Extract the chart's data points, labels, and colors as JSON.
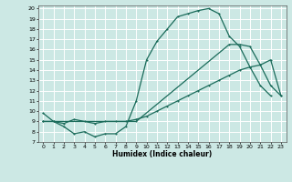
{
  "xlabel": "Humidex (Indice chaleur)",
  "bg_color": "#cce8e4",
  "grid_color": "#ffffff",
  "line_color": "#1a6b5a",
  "xlim": [
    -0.5,
    23.5
  ],
  "ylim": [
    7,
    20.3
  ],
  "xticks": [
    0,
    1,
    2,
    3,
    4,
    5,
    6,
    7,
    8,
    9,
    10,
    11,
    12,
    13,
    14,
    15,
    16,
    17,
    18,
    19,
    20,
    21,
    22,
    23
  ],
  "yticks": [
    7,
    8,
    9,
    10,
    11,
    12,
    13,
    14,
    15,
    16,
    17,
    18,
    19,
    20
  ],
  "line1_x": [
    0,
    1,
    2,
    3,
    4,
    5,
    6,
    7,
    8,
    9,
    10,
    11,
    12,
    13,
    14,
    15,
    16,
    17,
    18,
    19,
    20,
    21,
    22
  ],
  "line1_y": [
    9.8,
    9.0,
    8.5,
    7.8,
    8.0,
    7.5,
    7.8,
    7.8,
    8.5,
    11.0,
    15.0,
    16.8,
    18.0,
    19.2,
    19.5,
    19.8,
    20.0,
    19.5,
    17.3,
    16.3,
    14.3,
    12.5,
    11.5
  ],
  "line2_x": [
    0,
    1,
    2,
    3,
    4,
    5,
    6,
    7,
    8,
    9,
    10,
    11,
    12,
    13,
    14,
    15,
    16,
    17,
    18,
    19,
    20,
    21,
    22,
    23
  ],
  "line2_y": [
    9.0,
    9.0,
    8.8,
    9.2,
    9.0,
    8.8,
    9.0,
    9.0,
    9.0,
    9.2,
    9.5,
    10.0,
    10.5,
    11.0,
    11.5,
    12.0,
    12.5,
    13.0,
    13.5,
    14.0,
    14.3,
    14.5,
    15.0,
    11.5
  ],
  "line3_x": [
    0,
    9,
    18,
    19,
    20,
    21,
    22,
    23
  ],
  "line3_y": [
    9.0,
    9.0,
    16.5,
    16.5,
    16.3,
    14.5,
    12.5,
    11.5
  ]
}
